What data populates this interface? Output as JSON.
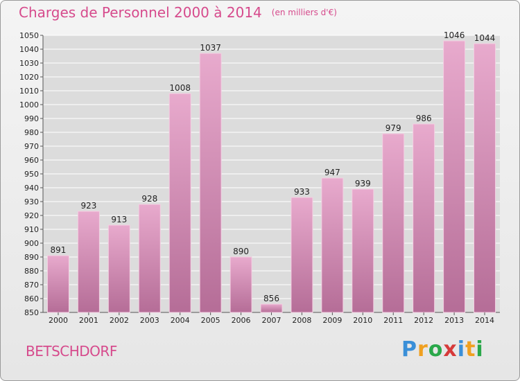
{
  "header": {
    "title": "Charges de Personnel 2000 à 2014",
    "unit": "(en milliers d'€)"
  },
  "footer": {
    "commune": "BETSCHDORF",
    "logo_text": "Proxiti"
  },
  "colors": {
    "title": "#d64a8c",
    "bar_light": "#e8aacd",
    "bar_dark": "#b56d97",
    "grid": "#ffffff",
    "plot_background": "#dcdcdc"
  },
  "chart_data": {
    "type": "bar",
    "title": "Charges de Personnel 2000 à 2014",
    "categories": [
      "2000",
      "2001",
      "2002",
      "2003",
      "2004",
      "2005",
      "2006",
      "2007",
      "2008",
      "2009",
      "2010",
      "2011",
      "2012",
      "2013",
      "2014"
    ],
    "values": [
      891,
      923,
      913,
      928,
      1008,
      1037,
      890,
      856,
      933,
      947,
      939,
      979,
      986,
      1046,
      1044
    ],
    "ylim": [
      850,
      1050
    ],
    "yticks": [
      850,
      860,
      870,
      880,
      890,
      900,
      910,
      920,
      930,
      940,
      950,
      960,
      970,
      980,
      990,
      1000,
      1010,
      1020,
      1030,
      1040,
      1050
    ],
    "grid": true,
    "xlabel": "",
    "ylabel": ""
  }
}
